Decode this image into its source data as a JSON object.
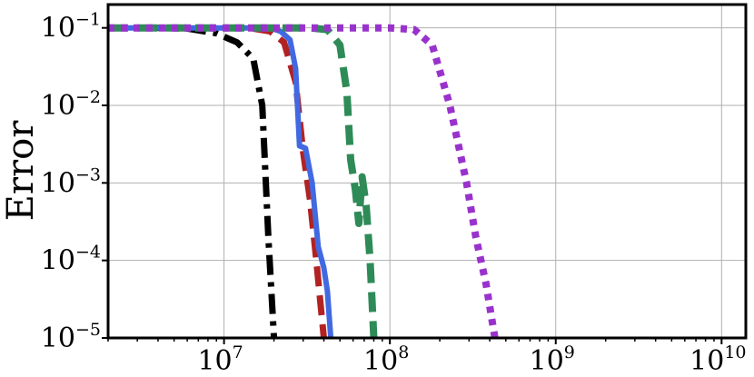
{
  "chart_data": {
    "type": "line",
    "title": "",
    "xlabel": "",
    "ylabel": "Error",
    "xscale": "log",
    "yscale": "log",
    "xlim": [
      2000000,
      14000000000
    ],
    "ylim": [
      1e-05,
      0.2
    ],
    "grid": true,
    "legend": "none",
    "x_ticks": [
      {
        "base": "10",
        "exp": "7",
        "value": 10000000
      },
      {
        "base": "10",
        "exp": "8",
        "value": 100000000
      },
      {
        "base": "10",
        "exp": "9",
        "value": 1000000000
      },
      {
        "base": "10",
        "exp": "10",
        "value": 10000000000
      }
    ],
    "y_ticks": [
      {
        "base": "10",
        "exp": "−1",
        "value": 0.1
      },
      {
        "base": "10",
        "exp": "−2",
        "value": 0.01
      },
      {
        "base": "10",
        "exp": "−3",
        "value": 0.001
      },
      {
        "base": "10",
        "exp": "−4",
        "value": 0.0001
      },
      {
        "base": "10",
        "exp": "−5",
        "value": 1e-05
      }
    ],
    "series": [
      {
        "color": "#000000",
        "style": "dashdot",
        "width": 7,
        "x": [
          2000000,
          4000000,
          6000000,
          9000000,
          12000000,
          15000000,
          17000000,
          18500000,
          20000000
        ],
        "y": [
          0.1,
          0.1,
          0.098,
          0.085,
          0.065,
          0.04,
          0.01,
          0.0002,
          1e-05
        ]
      },
      {
        "color": "#b22222",
        "style": "dashed",
        "width": 7,
        "x": [
          2000000,
          8000000,
          14000000,
          19000000,
          23000000,
          27000000,
          30000000,
          33000000,
          36000000,
          38000000,
          40000000
        ],
        "y": [
          0.1,
          0.1,
          0.1,
          0.09,
          0.065,
          0.02,
          0.0025,
          0.0006,
          0.0001,
          3e-05,
          1e-05
        ]
      },
      {
        "color": "#4169e1",
        "style": "solid",
        "width": 6,
        "x": [
          2000000,
          8000000,
          14000000,
          19000000,
          22000000,
          25000000,
          27000000,
          28500000,
          31000000,
          34000000,
          37000000,
          40000000,
          42000000,
          44000000
        ],
        "y": [
          0.1,
          0.1,
          0.1,
          0.1,
          0.09,
          0.07,
          0.03,
          0.003,
          0.0028,
          0.001,
          0.00015,
          8e-05,
          4e-05,
          1e-05
        ]
      },
      {
        "color": "#2e8b57",
        "style": "dashed",
        "width": 8,
        "x": [
          2000000,
          10000000,
          22000000,
          33000000,
          42000000,
          50000000,
          55000000,
          58000000,
          62000000,
          65000000,
          68000000,
          72000000,
          76000000,
          80000000
        ],
        "y": [
          0.1,
          0.1,
          0.1,
          0.1,
          0.095,
          0.06,
          0.015,
          0.002,
          0.0008,
          0.0003,
          0.0012,
          0.0005,
          0.0001,
          1e-05
        ]
      },
      {
        "color": "#9932cc",
        "style": "dotted",
        "width": 8,
        "x": [
          2000000,
          20000000,
          70000000,
          100000000,
          140000000,
          180000000,
          230000000,
          290000000,
          330000000,
          380000000,
          430000000
        ],
        "y": [
          0.1,
          0.1,
          0.1,
          0.1,
          0.095,
          0.06,
          0.01,
          0.001,
          0.0002,
          5e-05,
          1e-05
        ]
      }
    ]
  }
}
